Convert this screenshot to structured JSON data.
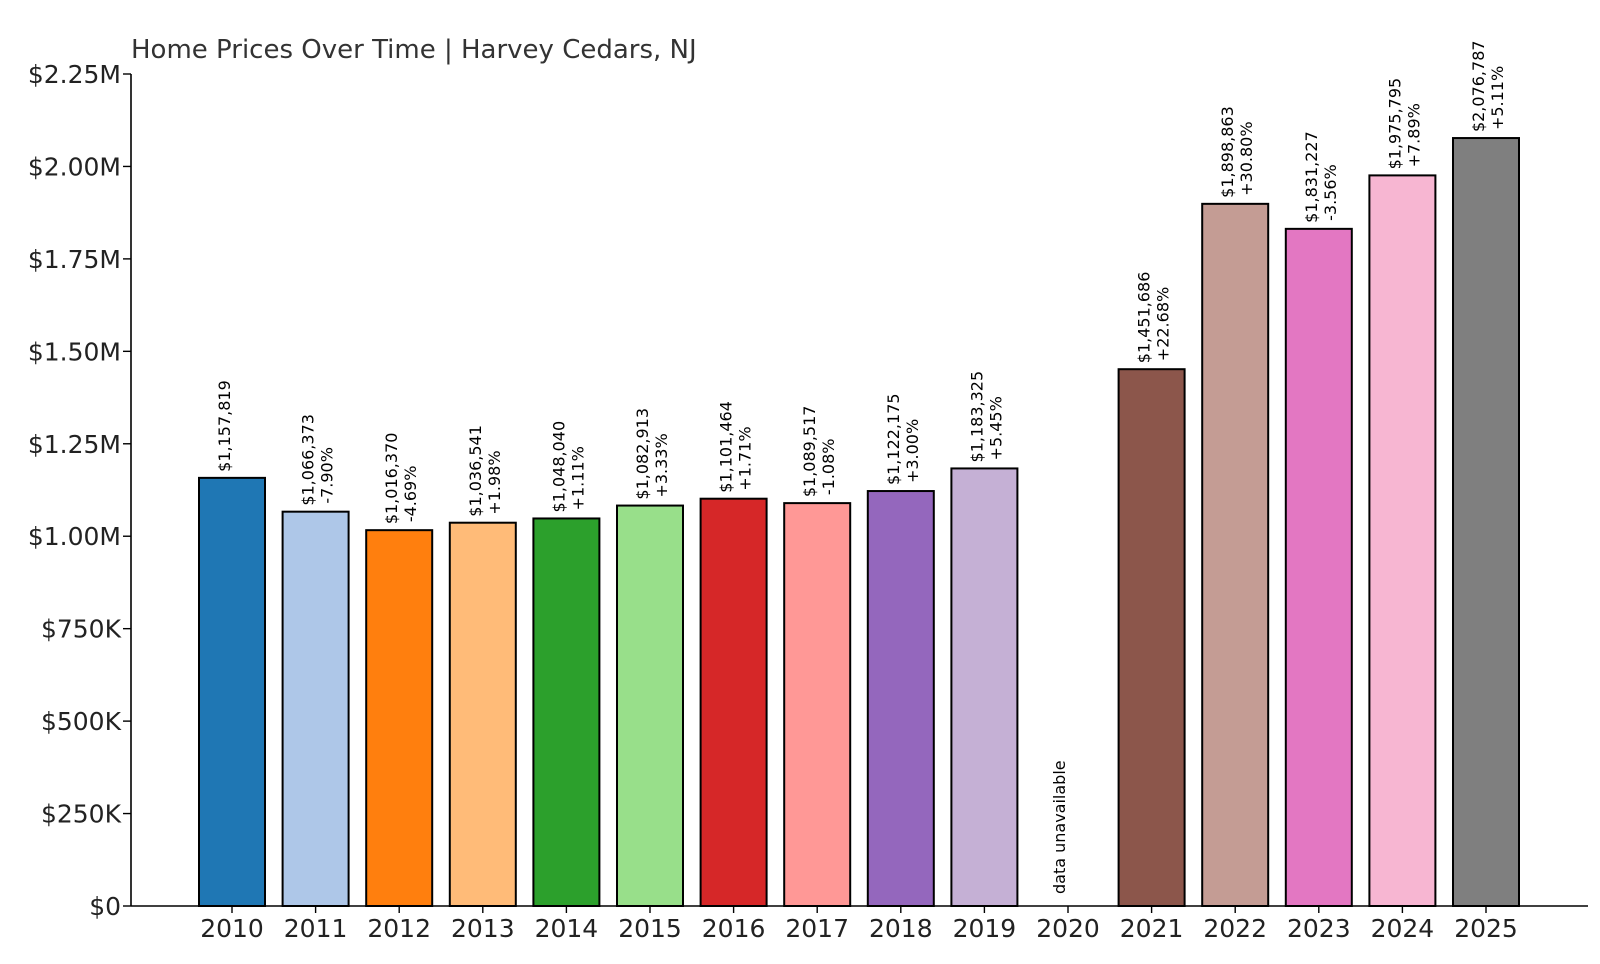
{
  "chart_data": {
    "type": "bar",
    "title": "Home Prices Over Time | Harvey Cedars, NJ",
    "xlabel": "",
    "ylabel": "",
    "ylim": [
      0,
      2250000
    ],
    "yticks": [
      {
        "value": 0,
        "label": "$0"
      },
      {
        "value": 250000,
        "label": "$250K"
      },
      {
        "value": 500000,
        "label": "$500K"
      },
      {
        "value": 750000,
        "label": "$750K"
      },
      {
        "value": 1000000,
        "label": "$1.00M"
      },
      {
        "value": 1250000,
        "label": "$1.25M"
      },
      {
        "value": 1500000,
        "label": "$1.50M"
      },
      {
        "value": 1750000,
        "label": "$1.75M"
      },
      {
        "value": 2000000,
        "label": "$2.00M"
      },
      {
        "value": 2250000,
        "label": "$2.25M"
      }
    ],
    "grid": false,
    "categories": [
      "2010",
      "2011",
      "2012",
      "2013",
      "2014",
      "2015",
      "2016",
      "2017",
      "2018",
      "2019",
      "2020",
      "2021",
      "2022",
      "2023",
      "2024",
      "2025"
    ],
    "values": [
      1157819,
      1066373,
      1016370,
      1036541,
      1048040,
      1082913,
      1101464,
      1089517,
      1122175,
      1183325,
      null,
      1451686,
      1898863,
      1831227,
      1975795,
      2076787
    ],
    "value_labels": [
      "$1,157,819",
      "$1,066,373",
      "$1,016,370",
      "$1,036,541",
      "$1,048,040",
      "$1,082,913",
      "$1,101,464",
      "$1,089,517",
      "$1,122,175",
      "$1,183,325",
      "",
      "$1,451,686",
      "$1,898,863",
      "$1,831,227",
      "$1,975,795",
      "$2,076,787"
    ],
    "change_labels": [
      "",
      "-7.90%",
      "-4.69%",
      "+1.98%",
      "+1.11%",
      "+3.33%",
      "+1.71%",
      "-1.08%",
      "+3.00%",
      "+5.45%",
      "",
      "+22.68%",
      "+30.80%",
      "-3.56%",
      "+7.89%",
      "+5.11%"
    ],
    "missing_label": "data unavailable",
    "colors": [
      "#1f77b4",
      "#aec7e8",
      "#ff7f0e",
      "#ffbb78",
      "#2ca02c",
      "#98df8a",
      "#d62728",
      "#ff9896",
      "#9467bd",
      "#c5b0d5",
      "#8c564b",
      "#8c564b",
      "#c49c94",
      "#e377c2",
      "#f7b6d2",
      "#7f7f7f"
    ]
  }
}
